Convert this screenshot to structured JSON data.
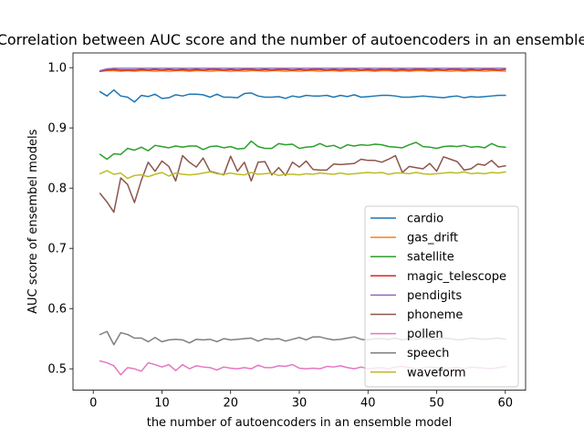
{
  "chart_data": {
    "type": "line",
    "title": "Correlation between AUC score and the number of autoencoders in an ensemble",
    "xlabel": "the number of autoencoders in an ensemble model",
    "ylabel": "AUC score of ensembel models",
    "xlim": [
      -2.95,
      62.95
    ],
    "ylim": [
      0.4645,
      1.0245
    ],
    "xticks": [
      0,
      10,
      20,
      30,
      40,
      50,
      60
    ],
    "yticks": [
      0.5,
      0.6,
      0.7,
      0.8,
      0.9,
      1.0
    ],
    "xtick_labels": [
      "0",
      "10",
      "20",
      "30",
      "40",
      "50",
      "60"
    ],
    "ytick_labels": [
      "0.5",
      "0.6",
      "0.7",
      "0.8",
      "0.9",
      "1.0"
    ],
    "legend_position": "lower-right",
    "grid": false,
    "x": [
      1,
      2,
      3,
      4,
      5,
      6,
      7,
      8,
      9,
      10,
      11,
      12,
      13,
      14,
      15,
      16,
      17,
      18,
      19,
      20,
      21,
      22,
      23,
      24,
      25,
      26,
      27,
      28,
      29,
      30,
      31,
      32,
      33,
      34,
      35,
      36,
      37,
      38,
      39,
      40,
      41,
      42,
      43,
      44,
      45,
      46,
      47,
      48,
      49,
      50,
      51,
      52,
      53,
      54,
      55,
      56,
      57,
      58,
      59,
      60
    ],
    "series": [
      {
        "name": "cardio",
        "color": "#1f77b4",
        "values": [
          0.96,
          0.953,
          0.963,
          0.953,
          0.951,
          0.943,
          0.954,
          0.952,
          0.956,
          0.949,
          0.95,
          0.955,
          0.953,
          0.956,
          0.956,
          0.955,
          0.951,
          0.956,
          0.951,
          0.951,
          0.95,
          0.957,
          0.958,
          0.953,
          0.951,
          0.951,
          0.952,
          0.949,
          0.953,
          0.951,
          0.954,
          0.953,
          0.953,
          0.954,
          0.951,
          0.954,
          0.952,
          0.955,
          0.951,
          0.952,
          0.953,
          0.954,
          0.954,
          0.953,
          0.951,
          0.951,
          0.952,
          0.953,
          0.952,
          0.951,
          0.95,
          0.952,
          0.953,
          0.95,
          0.952,
          0.951,
          0.952,
          0.953,
          0.954,
          0.954
        ]
      },
      {
        "name": "gas_drift",
        "color": "#ff7f0e",
        "values": [
          0.994,
          0.995,
          0.995,
          0.994,
          0.995,
          0.994,
          0.995,
          0.995,
          0.994,
          0.995,
          0.994,
          0.995,
          0.995,
          0.994,
          0.995,
          0.995,
          0.994,
          0.995,
          0.995,
          0.994,
          0.995,
          0.994,
          0.995,
          0.995,
          0.994,
          0.995,
          0.995,
          0.994,
          0.995,
          0.994,
          0.995,
          0.995,
          0.994,
          0.995,
          0.995,
          0.994,
          0.995,
          0.994,
          0.995,
          0.995,
          0.994,
          0.995,
          0.995,
          0.994,
          0.995,
          0.994,
          0.995,
          0.995,
          0.994,
          0.995,
          0.995,
          0.994,
          0.995,
          0.994,
          0.995,
          0.995,
          0.994,
          0.995,
          0.995,
          0.994
        ]
      },
      {
        "name": "satellite",
        "color": "#2ca02c",
        "values": [
          0.856,
          0.848,
          0.857,
          0.856,
          0.866,
          0.863,
          0.868,
          0.862,
          0.871,
          0.869,
          0.867,
          0.87,
          0.868,
          0.87,
          0.87,
          0.864,
          0.869,
          0.87,
          0.867,
          0.869,
          0.865,
          0.866,
          0.878,
          0.869,
          0.866,
          0.866,
          0.874,
          0.872,
          0.873,
          0.866,
          0.868,
          0.869,
          0.874,
          0.869,
          0.871,
          0.866,
          0.872,
          0.87,
          0.872,
          0.871,
          0.873,
          0.872,
          0.869,
          0.868,
          0.867,
          0.872,
          0.876,
          0.869,
          0.868,
          0.866,
          0.869,
          0.87,
          0.869,
          0.871,
          0.868,
          0.869,
          0.867,
          0.874,
          0.869,
          0.868
        ]
      },
      {
        "name": "magic_telescope",
        "color": "#d62728",
        "values": [
          0.994,
          0.996,
          0.997,
          0.996,
          0.996,
          0.996,
          0.997,
          0.996,
          0.997,
          0.996,
          0.997,
          0.996,
          0.997,
          0.996,
          0.997,
          0.996,
          0.997,
          0.997,
          0.996,
          0.997,
          0.996,
          0.997,
          0.997,
          0.996,
          0.997,
          0.996,
          0.997,
          0.997,
          0.996,
          0.997,
          0.996,
          0.997,
          0.997,
          0.996,
          0.997,
          0.996,
          0.997,
          0.997,
          0.996,
          0.997,
          0.996,
          0.997,
          0.997,
          0.996,
          0.997,
          0.996,
          0.997,
          0.997,
          0.996,
          0.997,
          0.996,
          0.997,
          0.997,
          0.996,
          0.997,
          0.996,
          0.997,
          0.997,
          0.996,
          0.997
        ]
      },
      {
        "name": "pendigits",
        "color": "#9467bd",
        "values": [
          0.995,
          0.998,
          0.999,
          0.999,
          0.999,
          0.999,
          0.999,
          0.999,
          0.999,
          0.999,
          0.999,
          0.999,
          0.999,
          0.999,
          0.999,
          0.999,
          0.999,
          0.999,
          0.999,
          0.999,
          0.999,
          0.999,
          0.999,
          0.999,
          0.999,
          0.999,
          0.999,
          0.999,
          0.999,
          0.999,
          0.999,
          0.999,
          0.999,
          0.999,
          0.999,
          0.999,
          0.999,
          0.999,
          0.999,
          0.999,
          0.999,
          0.999,
          0.999,
          0.999,
          0.999,
          0.999,
          0.999,
          0.999,
          0.999,
          0.999,
          0.999,
          0.999,
          0.999,
          0.999,
          0.999,
          0.999,
          0.999,
          0.999,
          0.999,
          0.999
        ]
      },
      {
        "name": "phoneme",
        "color": "#8c564b",
        "values": [
          0.791,
          0.777,
          0.76,
          0.817,
          0.806,
          0.776,
          0.813,
          0.843,
          0.828,
          0.845,
          0.836,
          0.812,
          0.854,
          0.843,
          0.835,
          0.85,
          0.828,
          0.825,
          0.822,
          0.853,
          0.828,
          0.843,
          0.812,
          0.843,
          0.844,
          0.822,
          0.834,
          0.821,
          0.843,
          0.835,
          0.845,
          0.831,
          0.83,
          0.83,
          0.84,
          0.839,
          0.84,
          0.841,
          0.848,
          0.846,
          0.846,
          0.843,
          0.848,
          0.854,
          0.826,
          0.836,
          0.834,
          0.832,
          0.841,
          0.828,
          0.852,
          0.848,
          0.844,
          0.83,
          0.832,
          0.84,
          0.838,
          0.846,
          0.835,
          0.837
        ]
      },
      {
        "name": "pollen",
        "color": "#e377c2",
        "values": [
          0.513,
          0.51,
          0.505,
          0.49,
          0.502,
          0.5,
          0.496,
          0.51,
          0.507,
          0.503,
          0.507,
          0.497,
          0.507,
          0.5,
          0.505,
          0.503,
          0.502,
          0.498,
          0.503,
          0.501,
          0.5,
          0.502,
          0.5,
          0.506,
          0.502,
          0.502,
          0.505,
          0.504,
          0.507,
          0.501,
          0.5,
          0.501,
          0.5,
          0.504,
          0.503,
          0.505,
          0.502,
          0.5,
          0.503,
          0.5,
          0.501,
          0.502,
          0.5,
          0.503,
          0.504,
          0.502,
          0.5,
          0.501,
          0.503,
          0.502,
          0.5,
          0.501,
          0.502,
          0.5,
          0.503,
          0.502,
          0.501,
          0.5,
          0.502,
          0.504
        ]
      },
      {
        "name": "speech",
        "color": "#7f7f7f",
        "values": [
          0.557,
          0.562,
          0.54,
          0.56,
          0.557,
          0.551,
          0.551,
          0.545,
          0.552,
          0.545,
          0.548,
          0.549,
          0.548,
          0.543,
          0.549,
          0.548,
          0.549,
          0.545,
          0.55,
          0.548,
          0.549,
          0.55,
          0.551,
          0.546,
          0.55,
          0.549,
          0.55,
          0.546,
          0.549,
          0.552,
          0.548,
          0.553,
          0.553,
          0.55,
          0.548,
          0.549,
          0.551,
          0.553,
          0.549,
          0.548,
          0.55,
          0.55,
          0.549,
          0.551,
          0.548,
          0.55,
          0.549,
          0.551,
          0.55,
          0.549,
          0.551,
          0.55,
          0.548,
          0.549,
          0.551,
          0.55,
          0.549,
          0.55,
          0.551,
          0.549
        ]
      },
      {
        "name": "waveform",
        "color": "#bcbd22",
        "values": [
          0.824,
          0.829,
          0.823,
          0.825,
          0.816,
          0.821,
          0.822,
          0.819,
          0.823,
          0.826,
          0.82,
          0.825,
          0.823,
          0.822,
          0.823,
          0.825,
          0.827,
          0.824,
          0.823,
          0.825,
          0.823,
          0.822,
          0.826,
          0.823,
          0.824,
          0.825,
          0.821,
          0.823,
          0.823,
          0.822,
          0.824,
          0.823,
          0.825,
          0.824,
          0.823,
          0.825,
          0.823,
          0.824,
          0.825,
          0.826,
          0.825,
          0.826,
          0.823,
          0.825,
          0.825,
          0.824,
          0.826,
          0.824,
          0.823,
          0.824,
          0.825,
          0.826,
          0.825,
          0.827,
          0.824,
          0.825,
          0.824,
          0.826,
          0.825,
          0.827
        ]
      }
    ]
  }
}
